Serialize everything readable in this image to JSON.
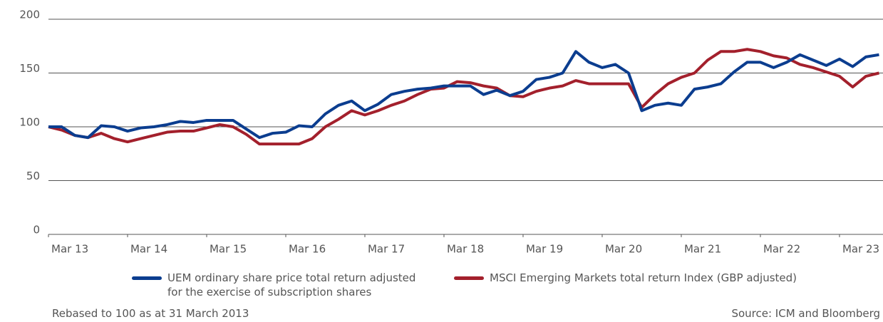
{
  "chart_data": {
    "type": "line",
    "x": [
      0,
      2,
      4,
      6,
      8,
      10,
      12,
      14,
      16,
      18,
      20,
      22,
      24,
      26,
      28,
      30,
      32,
      34,
      36,
      38,
      40,
      42,
      44,
      46,
      48,
      50,
      52,
      54,
      56,
      58,
      60,
      62,
      64,
      66,
      68,
      70,
      72,
      74,
      76,
      78,
      80,
      82,
      84,
      86,
      88,
      90,
      92,
      94,
      96,
      98,
      100,
      102,
      104,
      106,
      108,
      110,
      112,
      114,
      116,
      118,
      120,
      122,
      124,
      126
    ],
    "series": [
      {
        "name": "UEM ordinary share price total return adjusted for the exercise of subscription shares",
        "color": "#0b3d8f",
        "values": [
          100,
          100,
          92,
          90,
          101,
          100,
          96,
          99,
          100,
          102,
          105,
          104,
          106,
          106,
          106,
          98,
          90,
          94,
          95,
          101,
          100,
          112,
          120,
          124,
          115,
          121,
          130,
          133,
          135,
          136,
          138,
          138,
          138,
          130,
          134,
          129,
          133,
          144,
          146,
          150,
          170,
          160,
          155,
          158,
          150,
          115,
          120,
          122,
          120,
          135,
          137,
          140,
          151,
          160,
          160,
          155,
          160,
          167,
          162,
          157,
          163,
          156,
          165,
          167
        ]
      },
      {
        "name": "MSCI Emerging Markets total return Index (GBP adjusted)",
        "color": "#a3202c",
        "values": [
          100,
          97,
          92,
          90,
          94,
          89,
          86,
          89,
          92,
          95,
          96,
          96,
          99,
          102,
          100,
          93,
          84,
          84,
          84,
          84,
          89,
          100,
          107,
          115,
          111,
          115,
          120,
          124,
          130,
          135,
          136,
          142,
          141,
          138,
          136,
          129,
          128,
          133,
          136,
          138,
          143,
          140,
          140,
          140,
          140,
          118,
          130,
          140,
          146,
          150,
          162,
          170,
          170,
          172,
          170,
          166,
          164,
          158,
          155,
          151,
          147,
          137,
          147,
          150
        ]
      }
    ],
    "xlim": [
      0,
      126.6
    ],
    "xticks": [
      {
        "value": 0,
        "label": "Mar 13"
      },
      {
        "value": 12,
        "label": "Mar 14"
      },
      {
        "value": 24,
        "label": "Mar 15"
      },
      {
        "value": 36,
        "label": "Mar 16"
      },
      {
        "value": 48,
        "label": "Mar 17"
      },
      {
        "value": 60,
        "label": "Mar 18"
      },
      {
        "value": 72,
        "label": "Mar 19"
      },
      {
        "value": 84,
        "label": "Mar 20"
      },
      {
        "value": 96,
        "label": "Mar 21"
      },
      {
        "value": 108,
        "label": "Mar 22"
      },
      {
        "value": 120,
        "label": "Mar 23"
      }
    ],
    "ylim": [
      0,
      200
    ],
    "yticks": [
      0,
      50,
      100,
      150,
      200
    ],
    "grid": true,
    "notes": [
      "Rebased to 100 as at 31 March 2013",
      "Source: ICM and Bloomberg"
    ]
  }
}
